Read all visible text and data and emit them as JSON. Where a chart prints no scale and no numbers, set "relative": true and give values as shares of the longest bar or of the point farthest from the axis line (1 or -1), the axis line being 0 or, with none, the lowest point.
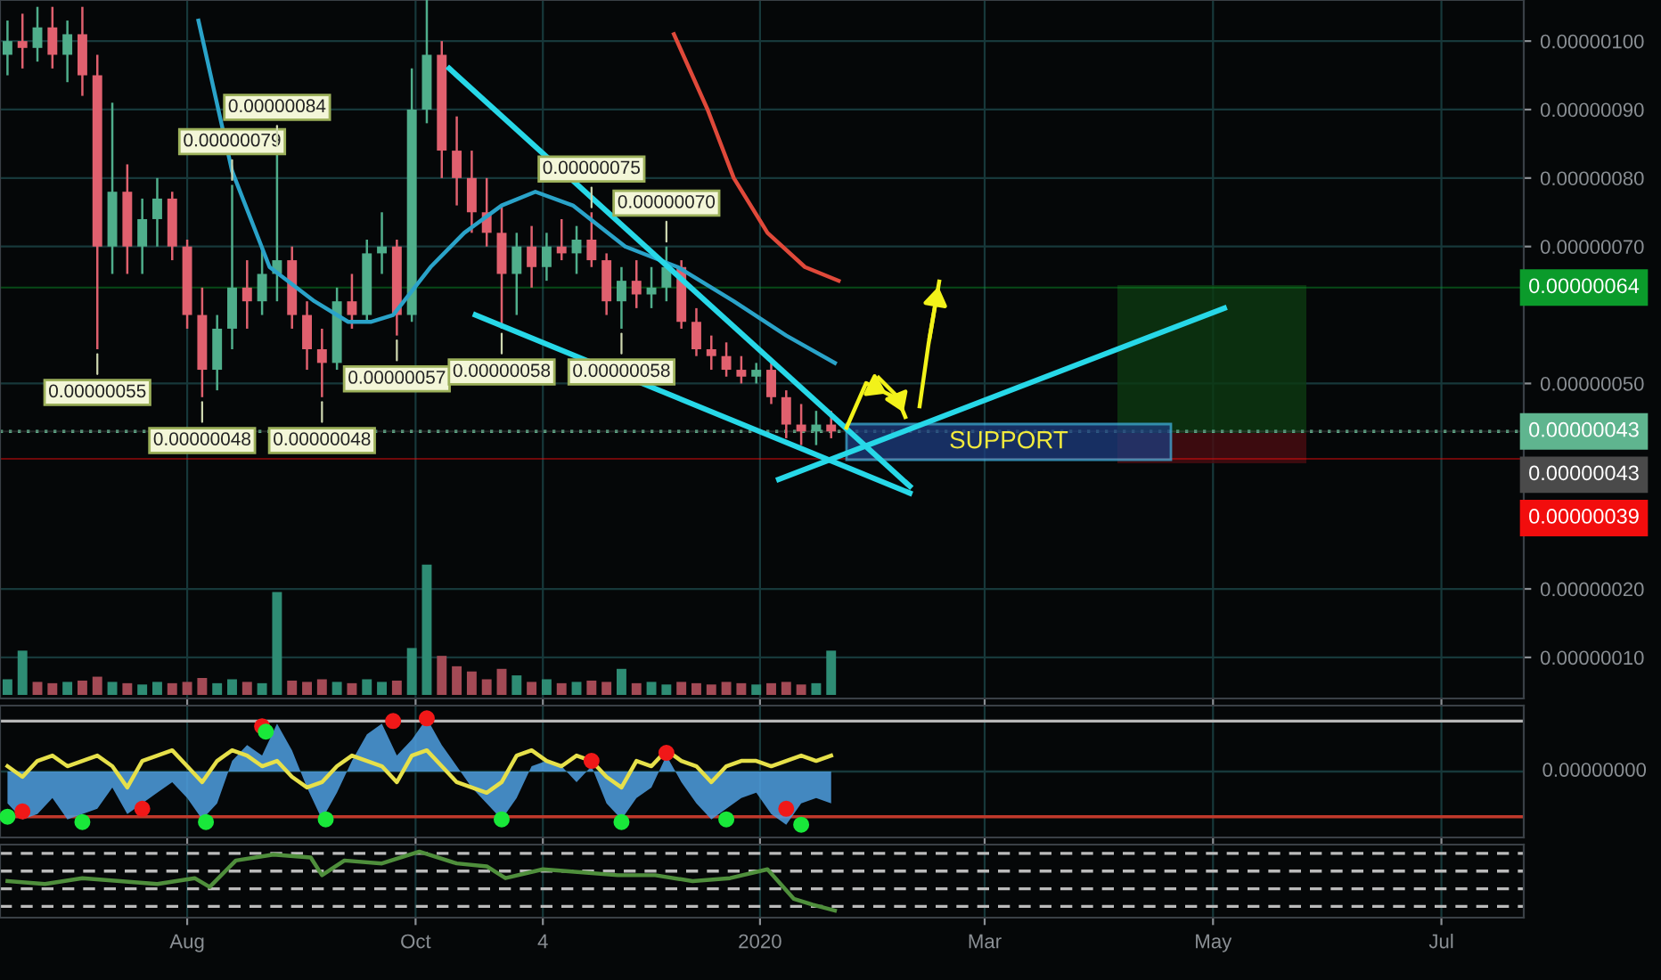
{
  "chart_data": [
    {
      "type": "candlestick",
      "x": [
        "2019-06-14",
        "2019-06-18",
        "2019-06-22",
        "2019-06-26",
        "2019-06-30",
        "2019-07-04",
        "2019-07-08",
        "2019-07-12",
        "2019-07-16",
        "2019-07-20",
        "2019-07-24",
        "2019-07-28",
        "2019-08-01",
        "2019-08-05",
        "2019-08-09",
        "2019-08-13",
        "2019-08-17",
        "2019-08-21",
        "2019-08-25",
        "2019-08-29",
        "2019-09-02",
        "2019-09-06",
        "2019-09-10",
        "2019-09-14",
        "2019-09-18",
        "2019-09-22",
        "2019-09-26",
        "2019-09-30",
        "2019-10-04",
        "2019-10-08",
        "2019-10-12",
        "2019-10-16",
        "2019-10-20",
        "2019-10-24",
        "2019-10-28",
        "2019-11-01",
        "2019-11-05",
        "2019-11-09",
        "2019-11-13",
        "2019-11-17",
        "2019-11-21",
        "2019-11-25",
        "2019-11-29",
        "2019-12-03",
        "2019-12-07",
        "2019-12-11",
        "2019-12-15",
        "2019-12-19",
        "2019-12-23",
        "2019-12-27",
        "2019-12-31",
        "2020-01-04",
        "2020-01-08",
        "2020-01-12",
        "2020-01-16",
        "2020-01-20"
      ],
      "ohlc": [
        [
          9.8e-07,
          1.03e-06,
          9.5e-07,
          1e-06
        ],
        [
          1e-06,
          1.04e-06,
          9.6e-07,
          9.9e-07
        ],
        [
          9.9e-07,
          1.05e-06,
          9.7e-07,
          1.02e-06
        ],
        [
          1.02e-06,
          1.05e-06,
          9.6e-07,
          9.8e-07
        ],
        [
          9.8e-07,
          1.03e-06,
          9.4e-07,
          1.01e-06
        ],
        [
          1.01e-06,
          1.05e-06,
          9.2e-07,
          9.5e-07
        ],
        [
          9.5e-07,
          9.8e-07,
          5.5e-07,
          7e-07
        ],
        [
          7e-07,
          9.1e-07,
          6.6e-07,
          7.8e-07
        ],
        [
          7.8e-07,
          8.2e-07,
          6.6e-07,
          7e-07
        ],
        [
          7e-07,
          7.7e-07,
          6.6e-07,
          7.4e-07
        ],
        [
          7.4e-07,
          8e-07,
          7e-07,
          7.7e-07
        ],
        [
          7.7e-07,
          7.8e-07,
          6.8e-07,
          7e-07
        ],
        [
          7e-07,
          7.1e-07,
          5.8e-07,
          6e-07
        ],
        [
          6e-07,
          6.4e-07,
          4.8e-07,
          5.2e-07
        ],
        [
          5.2e-07,
          6e-07,
          4.9e-07,
          5.8e-07
        ],
        [
          5.8e-07,
          7.9e-07,
          5.5e-07,
          6.4e-07
        ],
        [
          6.4e-07,
          6.8e-07,
          5.8e-07,
          6.2e-07
        ],
        [
          6.2e-07,
          7e-07,
          6e-07,
          6.6e-07
        ],
        [
          6.6e-07,
          8.4e-07,
          6.2e-07,
          6.8e-07
        ],
        [
          6.8e-07,
          7e-07,
          5.8e-07,
          6e-07
        ],
        [
          6e-07,
          6.2e-07,
          5.2e-07,
          5.5e-07
        ],
        [
          5.5e-07,
          5.8e-07,
          4.8e-07,
          5.3e-07
        ],
        [
          5.3e-07,
          6.4e-07,
          5.2e-07,
          6.2e-07
        ],
        [
          6.2e-07,
          6.6e-07,
          5.8e-07,
          6e-07
        ],
        [
          6e-07,
          7.1e-07,
          5.9e-07,
          6.9e-07
        ],
        [
          6.9e-07,
          7.5e-07,
          6.6e-07,
          7e-07
        ],
        [
          7e-07,
          7.1e-07,
          5.7e-07,
          6e-07
        ],
        [
          6e-07,
          9.6e-07,
          5.9e-07,
          9e-07
        ],
        [
          9e-07,
          1.06e-06,
          8.8e-07,
          9.8e-07
        ],
        [
          9.8e-07,
          1e-06,
          8e-07,
          8.4e-07
        ],
        [
          8.4e-07,
          8.9e-07,
          7.6e-07,
          8e-07
        ],
        [
          8e-07,
          8.4e-07,
          7.2e-07,
          7.5e-07
        ],
        [
          7.5e-07,
          8e-07,
          7e-07,
          7.2e-07
        ],
        [
          7.2e-07,
          7.6e-07,
          5.8e-07,
          6.6e-07
        ],
        [
          6.6e-07,
          7.2e-07,
          6e-07,
          7e-07
        ],
        [
          7e-07,
          7.3e-07,
          6.4e-07,
          6.7e-07
        ],
        [
          6.7e-07,
          7.2e-07,
          6.5e-07,
          7e-07
        ],
        [
          7e-07,
          7.4e-07,
          6.8e-07,
          6.9e-07
        ],
        [
          6.9e-07,
          7.3e-07,
          6.6e-07,
          7.1e-07
        ],
        [
          7.1e-07,
          7.5e-07,
          6.7e-07,
          6.8e-07
        ],
        [
          6.8e-07,
          6.9e-07,
          6e-07,
          6.2e-07
        ],
        [
          6.2e-07,
          6.7e-07,
          5.8e-07,
          6.5e-07
        ],
        [
          6.5e-07,
          6.8e-07,
          6.1e-07,
          6.3e-07
        ],
        [
          6.3e-07,
          6.7e-07,
          6.1e-07,
          6.4e-07
        ],
        [
          6.4e-07,
          7e-07,
          6.2e-07,
          6.7e-07
        ],
        [
          6.7e-07,
          6.8e-07,
          5.8e-07,
          5.9e-07
        ],
        [
          5.9e-07,
          6.1e-07,
          5.4e-07,
          5.5e-07
        ],
        [
          5.5e-07,
          5.7e-07,
          5.2e-07,
          5.4e-07
        ],
        [
          5.4e-07,
          5.6e-07,
          5.1e-07,
          5.2e-07
        ],
        [
          5.2e-07,
          5.4e-07,
          5e-07,
          5.1e-07
        ],
        [
          5.1e-07,
          5.3e-07,
          5e-07,
          5.2e-07
        ],
        [
          5.2e-07,
          5.3e-07,
          4.7e-07,
          4.8e-07
        ],
        [
          4.8e-07,
          4.9e-07,
          4.2e-07,
          4.4e-07
        ],
        [
          4.4e-07,
          4.7e-07,
          4.1e-07,
          4.3e-07
        ],
        [
          4.3e-07,
          4.6e-07,
          4.1e-07,
          4.4e-07
        ],
        [
          4.4e-07,
          4.6e-07,
          4.2e-07,
          4.3e-07
        ]
      ],
      "colors": [
        "#4fae8b",
        "#e0606e",
        "#4fae8b",
        "#e0606e",
        "#4fae8b",
        "#e0606e",
        "#e0606e",
        "#4fae8b",
        "#e0606e",
        "#4fae8b",
        "#4fae8b",
        "#e0606e",
        "#e0606e",
        "#e0606e",
        "#4fae8b",
        "#4fae8b",
        "#e0606e",
        "#4fae8b",
        "#4fae8b",
        "#e0606e",
        "#e0606e",
        "#e0606e",
        "#4fae8b",
        "#e0606e",
        "#4fae8b",
        "#4fae8b",
        "#e0606e",
        "#4fae8b",
        "#4fae8b",
        "#e0606e",
        "#e0606e",
        "#e0606e",
        "#e0606e",
        "#e0606e",
        "#4fae8b",
        "#e0606e",
        "#4fae8b",
        "#e0606e",
        "#4fae8b",
        "#e0606e",
        "#e0606e",
        "#4fae8b",
        "#e0606e",
        "#4fae8b",
        "#4fae8b",
        "#e0606e",
        "#e0606e",
        "#e0606e",
        "#e0606e",
        "#e0606e",
        "#4fae8b",
        "#e0606e",
        "#e0606e",
        "#e0606e",
        "#4fae8b",
        "#e0606e"
      ],
      "series": [
        {
          "type": "line",
          "color": "#2aa3c9",
          "x": [
            "2019-08-04",
            "2019-08-13",
            "2019-08-23",
            "2019-09-04",
            "2019-09-13",
            "2019-09-19",
            "2019-09-25",
            "2019-10-05",
            "2019-10-14",
            "2019-10-24",
            "2019-11-02",
            "2019-11-12",
            "2019-11-26",
            "2019-12-10",
            "2019-12-25",
            "2020-01-08",
            "2020-01-21"
          ],
          "values": [
            1.03e-06,
            8.1e-07,
            6.7e-07,
            6.2e-07,
            5.9e-07,
            5.9e-07,
            6e-07,
            6.7e-07,
            7.2e-07,
            7.6e-07,
            7.8e-07,
            7.6e-07,
            7e-07,
            6.7e-07,
            6.2e-07,
            5.7e-07,
            5.3e-07
          ]
        },
        {
          "type": "line",
          "color": "#e0493a",
          "x": [
            "2019-12-09",
            "2019-12-18",
            "2019-12-25",
            "2020-01-03",
            "2020-01-13",
            "2020-01-22"
          ],
          "values": [
            1.01e-06,
            9e-07,
            8e-07,
            7.2e-07,
            6.7e-07,
            6.5e-07
          ]
        },
        {
          "type": "line",
          "color": "#27d8e8",
          "x": [
            "2019-10-10",
            "2020-02-10"
          ],
          "values": [
            9.6e-07,
            3.5e-07
          ]
        },
        {
          "type": "line",
          "color": "#27d8e8",
          "x": [
            "2019-10-17",
            "2020-02-10"
          ],
          "values": [
            6e-07,
            3.4e-07
          ]
        },
        {
          "type": "line",
          "color": "#27d8e8",
          "x": [
            "2020-01-06",
            "2020-05-04"
          ],
          "values": [
            3.6e-07,
            6.1e-07
          ]
        }
      ],
      "xlim": [
        "2019-06-12",
        "2020-07-23"
      ],
      "xticks": [
        {
          "value": "2019-08-01",
          "label": null
        },
        {
          "value": "2019-10-01",
          "label": null
        },
        {
          "value": "2019-11-04",
          "label": null
        },
        {
          "value": "2020-01-01",
          "label": null
        },
        {
          "value": "2020-03-01",
          "label": null
        },
        {
          "value": "2020-05-01",
          "label": null
        },
        {
          "value": "2020-07-01",
          "label": null
        }
      ],
      "ylim": [
        4e-08,
        1.06e-06
      ],
      "yticks": [
        {
          "value": 1e-07,
          "label": "0.00000010"
        },
        {
          "value": 2e-07,
          "label": "0.00000020"
        },
        {
          "value": 5e-07,
          "label": "0.00000050"
        },
        {
          "value": 7e-07,
          "label": "0.00000070"
        },
        {
          "value": 8e-07,
          "label": "0.00000080"
        },
        {
          "value": 9e-07,
          "label": "0.00000090"
        },
        {
          "value": 1e-06,
          "label": "0.00000100"
        }
      ],
      "tick_labels": "y",
      "grid": true,
      "ref_lines": [
        {
          "axis": "y",
          "value": 6.4e-07,
          "label": "0.00000064",
          "color": "#0b9b2b"
        },
        {
          "axis": "y",
          "value": 4.3e-07,
          "label": "0.00000043",
          "color": "#5fb58f",
          "line_style": "dotted"
        },
        {
          "axis": "y",
          "value": 4.3e-07,
          "label": "0.00000043",
          "color": "#4a4a4a"
        },
        {
          "axis": "y",
          "value": 3.9e-07,
          "label": "0.00000039",
          "color": "#f20d0d"
        }
      ],
      "annotations": [
        {
          "text": "0.00000055",
          "x": "2019-07-08",
          "y": 5.5e-07
        },
        {
          "text": "0.00000048",
          "x": "2019-08-05",
          "y": 4.8e-07
        },
        {
          "text": "0.00000079",
          "x": "2019-08-13",
          "y": 7.9e-07
        },
        {
          "text": "0.00000084",
          "x": "2019-08-25",
          "y": 8.4e-07
        },
        {
          "text": "0.00000048",
          "x": "2019-09-06",
          "y": 4.8e-07
        },
        {
          "text": "0.00000057",
          "x": "2019-09-26",
          "y": 5.7e-07
        },
        {
          "text": "0.00000058",
          "x": "2019-10-24",
          "y": 5.8e-07
        },
        {
          "text": "0.00000075",
          "x": "2019-11-17",
          "y": 7.5e-07
        },
        {
          "text": "0.00000058",
          "x": "2019-11-25",
          "y": 5.8e-07
        },
        {
          "text": "0.00000070",
          "x": "2019-12-07",
          "y": 7e-07
        },
        "SUPPORT"
      ]
    },
    {
      "type": "bar",
      "relative": true,
      "x": [
        "2019-06-14",
        "2019-06-18",
        "2019-06-22",
        "2019-06-26",
        "2019-06-30",
        "2019-07-04",
        "2019-07-08",
        "2019-07-12",
        "2019-07-16",
        "2019-07-20",
        "2019-07-24",
        "2019-07-28",
        "2019-08-01",
        "2019-08-05",
        "2019-08-09",
        "2019-08-13",
        "2019-08-17",
        "2019-08-21",
        "2019-08-25",
        "2019-08-29",
        "2019-09-02",
        "2019-09-06",
        "2019-09-10",
        "2019-09-14",
        "2019-09-18",
        "2019-09-22",
        "2019-09-26",
        "2019-09-30",
        "2019-10-04",
        "2019-10-08",
        "2019-10-12",
        "2019-10-16",
        "2019-10-20",
        "2019-10-24",
        "2019-10-28",
        "2019-11-01",
        "2019-11-05",
        "2019-11-09",
        "2019-11-13",
        "2019-11-17",
        "2019-11-21",
        "2019-11-25",
        "2019-11-29",
        "2019-12-03",
        "2019-12-07",
        "2019-12-11",
        "2019-12-15",
        "2019-12-19",
        "2019-12-23",
        "2019-12-27",
        "2019-12-31",
        "2020-01-04",
        "2020-01-08",
        "2020-01-12",
        "2020-01-16",
        "2020-01-20"
      ],
      "values": [
        0.12,
        0.34,
        0.1,
        0.09,
        0.1,
        0.11,
        0.14,
        0.1,
        0.09,
        0.08,
        0.1,
        0.09,
        0.1,
        0.13,
        0.09,
        0.12,
        0.1,
        0.09,
        0.79,
        0.11,
        0.1,
        0.12,
        0.1,
        0.09,
        0.12,
        0.1,
        0.11,
        0.36,
        1.0,
        0.3,
        0.22,
        0.18,
        0.12,
        0.2,
        0.15,
        0.1,
        0.12,
        0.09,
        0.1,
        0.11,
        0.1,
        0.2,
        0.09,
        0.1,
        0.08,
        0.1,
        0.09,
        0.08,
        0.1,
        0.09,
        0.08,
        0.09,
        0.1,
        0.08,
        0.09,
        0.34
      ],
      "colors": [
        "#2e8c74",
        "#2e8c74",
        "#a34a55",
        "#a34a55",
        "#2e8c74",
        "#a34a55",
        "#a34a55",
        "#2e8c74",
        "#a34a55",
        "#2e8c74",
        "#2e8c74",
        "#a34a55",
        "#a34a55",
        "#a34a55",
        "#2e8c74",
        "#2e8c74",
        "#a34a55",
        "#2e8c74",
        "#2e8c74",
        "#a34a55",
        "#a34a55",
        "#a34a55",
        "#2e8c74",
        "#a34a55",
        "#2e8c74",
        "#2e8c74",
        "#a34a55",
        "#2e8c74",
        "#2e8c74",
        "#a34a55",
        "#a34a55",
        "#a34a55",
        "#a34a55",
        "#a34a55",
        "#2e8c74",
        "#a34a55",
        "#2e8c74",
        "#a34a55",
        "#2e8c74",
        "#a34a55",
        "#a34a55",
        "#2e8c74",
        "#a34a55",
        "#2e8c74",
        "#2e8c74",
        "#a34a55",
        "#a34a55",
        "#a34a55",
        "#a34a55",
        "#a34a55",
        "#2e8c74",
        "#a34a55",
        "#a34a55",
        "#a34a55",
        "#2e8c74",
        "#2e8c74"
      ],
      "xlim": [
        "2019-06-12",
        "2020-07-23"
      ],
      "tick_labels": false
    },
    {
      "type": "area",
      "relative": true,
      "x": [
        "2019-06-14",
        "2019-06-18",
        "2019-06-22",
        "2019-06-26",
        "2019-06-30",
        "2019-07-04",
        "2019-07-08",
        "2019-07-12",
        "2019-07-16",
        "2019-07-20",
        "2019-07-24",
        "2019-07-28",
        "2019-08-01",
        "2019-08-05",
        "2019-08-09",
        "2019-08-13",
        "2019-08-17",
        "2019-08-21",
        "2019-08-25",
        "2019-08-29",
        "2019-09-02",
        "2019-09-06",
        "2019-09-10",
        "2019-09-14",
        "2019-09-18",
        "2019-09-22",
        "2019-09-26",
        "2019-09-30",
        "2019-10-04",
        "2019-10-08",
        "2019-10-12",
        "2019-10-16",
        "2019-10-20",
        "2019-10-24",
        "2019-10-28",
        "2019-11-01",
        "2019-11-05",
        "2019-11-09",
        "2019-11-13",
        "2019-11-17",
        "2019-11-21",
        "2019-11-25",
        "2019-11-29",
        "2019-12-03",
        "2019-12-07",
        "2019-12-11",
        "2019-12-15",
        "2019-12-19",
        "2019-12-23",
        "2019-12-27",
        "2019-12-31",
        "2020-01-04",
        "2020-01-08",
        "2020-01-12",
        "2020-01-16",
        "2020-01-20"
      ],
      "series": [
        {
          "type": "area",
          "color": "#4f9fe0",
          "values": [
            -0.6,
            -0.9,
            -0.8,
            -0.5,
            -0.9,
            -0.8,
            -0.7,
            -0.3,
            -0.8,
            -0.6,
            -0.4,
            -0.2,
            -0.5,
            -0.9,
            -0.6,
            0.2,
            0.5,
            0.3,
            0.9,
            0.4,
            -0.3,
            -0.9,
            -0.4,
            0.2,
            0.7,
            0.9,
            0.3,
            0.6,
            1.0,
            0.5,
            0.1,
            -0.3,
            -0.6,
            -0.9,
            -0.5,
            0.1,
            0.2,
            0.1,
            -0.2,
            0.1,
            -0.6,
            -0.9,
            -0.5,
            -0.3,
            0.3,
            -0.2,
            -0.6,
            -0.9,
            -0.7,
            -0.5,
            -0.4,
            -0.8,
            -1.0,
            -0.6,
            -0.5,
            -0.6
          ]
        },
        {
          "type": "line",
          "color": "#e6e04a",
          "values": [
            0.1,
            -0.1,
            0.2,
            0.3,
            0.1,
            0.2,
            0.3,
            0.1,
            -0.3,
            0.2,
            0.3,
            0.4,
            0.1,
            -0.2,
            0.2,
            0.4,
            0.3,
            0.1,
            0.2,
            -0.1,
            -0.3,
            -0.2,
            0.1,
            0.3,
            0.2,
            0.1,
            -0.2,
            0.3,
            0.4,
            0.1,
            -0.2,
            -0.3,
            -0.4,
            -0.2,
            0.3,
            0.4,
            0.2,
            0.1,
            0.3,
            0.2,
            -0.1,
            -0.3,
            0.2,
            0.1,
            0.4,
            0.2,
            0.1,
            -0.2,
            0.1,
            0.2,
            0.2,
            0.1,
            0.2,
            0.3,
            0.2,
            0.3
          ]
        },
        {
          "type": "scatter",
          "color": "#f01818",
          "x": [
            "2019-08-21",
            "2019-09-25",
            "2019-10-04",
            "2019-06-18",
            "2019-07-20",
            "2019-11-17",
            "2019-12-07",
            "2020-01-08"
          ],
          "values": [
            0.85,
            0.95,
            1.0,
            -0.75,
            -0.7,
            0.2,
            0.35,
            -0.7
          ]
        },
        {
          "type": "scatter",
          "color": "#19e83a",
          "x": [
            "2019-06-14",
            "2019-07-04",
            "2019-08-06",
            "2019-09-07",
            "2019-10-24",
            "2019-11-25",
            "2019-12-23",
            "2020-01-12",
            "2019-08-22"
          ],
          "values": [
            -0.85,
            -0.95,
            -0.95,
            -0.9,
            -0.9,
            -0.95,
            -0.9,
            -1.0,
            0.75
          ]
        }
      ],
      "ref_lines": [
        {
          "axis": "y",
          "value": 0.95,
          "color": "#b8b8b8"
        },
        {
          "axis": "y",
          "value": -0.85,
          "color": "#c0392b"
        }
      ],
      "annotations": [
        "0.00000000"
      ],
      "grid": "x",
      "xlim": [
        "2019-06-12",
        "2020-07-23"
      ],
      "xticks": [
        {
          "value": "2019-08-01",
          "label": null
        },
        {
          "value": "2019-10-01",
          "label": null
        },
        {
          "value": "2019-11-04",
          "label": null
        },
        {
          "value": "2020-01-01",
          "label": null
        },
        {
          "value": "2020-03-01",
          "label": null
        },
        {
          "value": "2020-05-01",
          "label": null
        },
        {
          "value": "2020-07-01",
          "label": null
        }
      ],
      "tick_labels": false
    },
    {
      "type": "line",
      "relative": true,
      "x": [
        "2019-06-14",
        "2019-06-24",
        "2019-07-04",
        "2019-07-14",
        "2019-07-24",
        "2019-08-03",
        "2019-08-07",
        "2019-08-14",
        "2019-08-24",
        "2019-09-03",
        "2019-09-06",
        "2019-09-12",
        "2019-09-22",
        "2019-10-02",
        "2019-10-12",
        "2019-10-20",
        "2019-10-25",
        "2019-11-04",
        "2019-11-14",
        "2019-11-24",
        "2019-12-04",
        "2019-12-14",
        "2019-12-24",
        "2020-01-03",
        "2020-01-10",
        "2020-01-15",
        "2020-01-21"
      ],
      "values": [
        0.5,
        0.45,
        0.55,
        0.5,
        0.45,
        0.55,
        0.4,
        0.85,
        0.95,
        0.9,
        0.6,
        0.85,
        0.8,
        1.0,
        0.8,
        0.75,
        0.55,
        0.7,
        0.65,
        0.6,
        0.6,
        0.5,
        0.55,
        0.7,
        0.2,
        0.1,
        0.0
      ],
      "grid": "x",
      "color": "#4f8f3c",
      "ref_lines": [
        {
          "axis": "y",
          "value": 0.97,
          "color": "#bbbbbb",
          "line_style": "dashed"
        },
        {
          "axis": "y",
          "value": 0.67,
          "color": "#bbbbbb",
          "line_style": "dashed"
        },
        {
          "axis": "y",
          "value": 0.37,
          "color": "#bbbbbb",
          "line_style": "dashed"
        },
        {
          "axis": "y",
          "value": 0.07,
          "color": "#bbbbbb",
          "line_style": "dashed"
        }
      ],
      "xlim": [
        "2019-06-12",
        "2020-07-23"
      ],
      "xticks": [
        {
          "value": "2019-08-01",
          "label": "Aug"
        },
        {
          "value": "2019-10-01",
          "label": "Oct"
        },
        {
          "value": "2019-11-04",
          "label": "4"
        },
        {
          "value": "2020-01-01",
          "label": "2020"
        },
        {
          "value": "2020-03-01",
          "label": "Mar"
        },
        {
          "value": "2020-05-01",
          "label": "May"
        },
        {
          "value": "2020-07-01",
          "label": "Jul"
        }
      ],
      "tick_labels": "x"
    }
  ]
}
